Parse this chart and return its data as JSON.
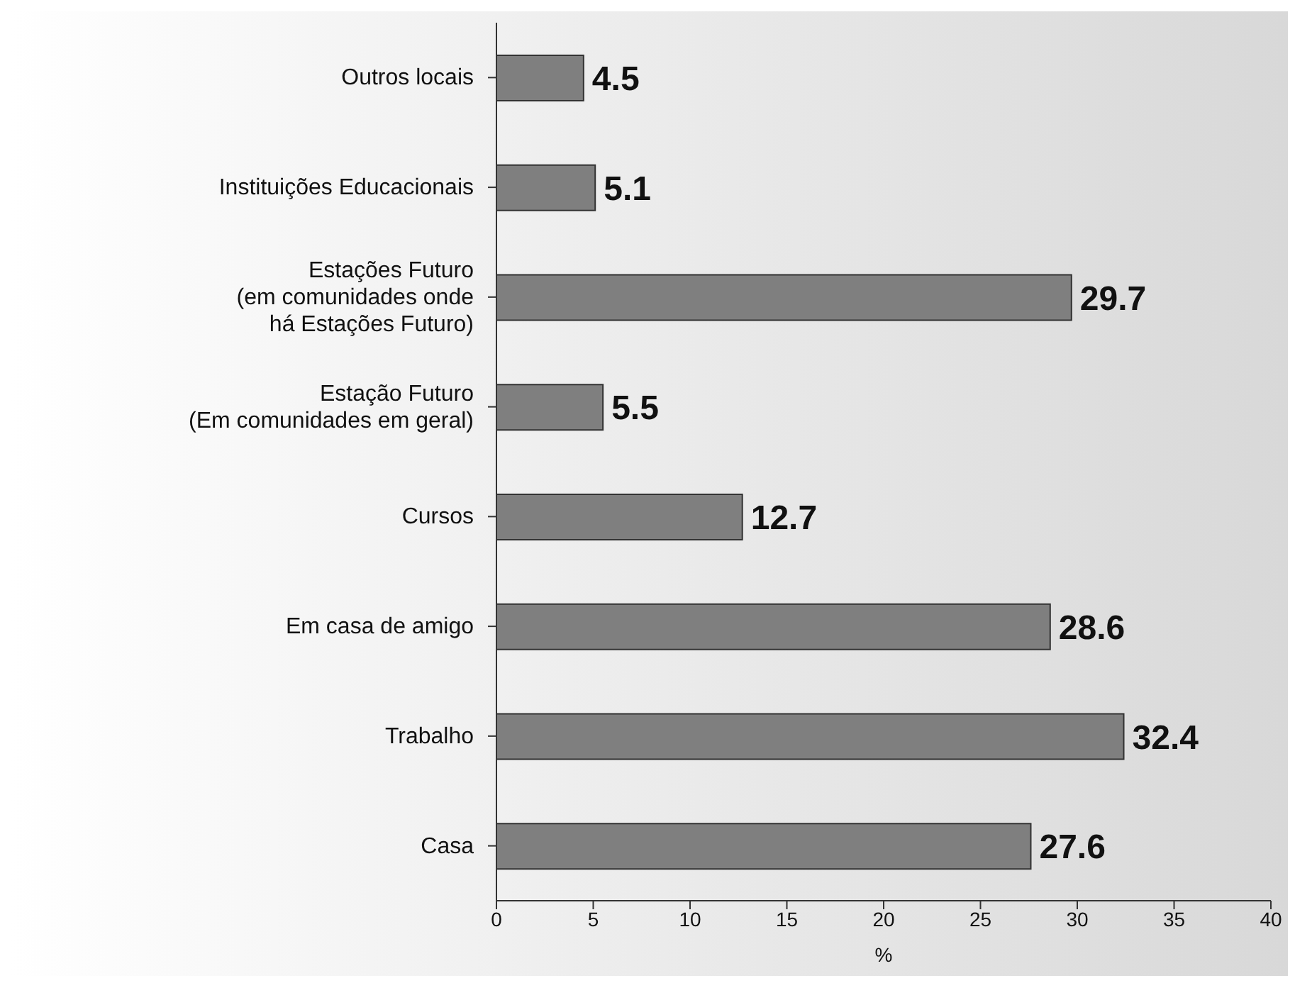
{
  "chart_data": {
    "type": "bar",
    "orientation": "horizontal",
    "categories": [
      "Outros locais",
      "Instituições Educacionais",
      "Estações Futuro\n(em comunidades onde\nhá Estações Futuro)",
      "Estação Futuro\n(Em comunidades em geral)",
      "Cursos",
      "Em casa de amigo",
      "Trabalho",
      "Casa"
    ],
    "values": [
      4.5,
      5.1,
      29.7,
      5.5,
      12.7,
      28.6,
      32.4,
      27.6
    ],
    "color": "#7f7f7f",
    "xlim": [
      0,
      40
    ],
    "xticks": [
      0,
      5,
      10,
      15,
      20,
      25,
      30,
      35,
      40
    ],
    "xlabel": "%",
    "data_labels": true
  }
}
